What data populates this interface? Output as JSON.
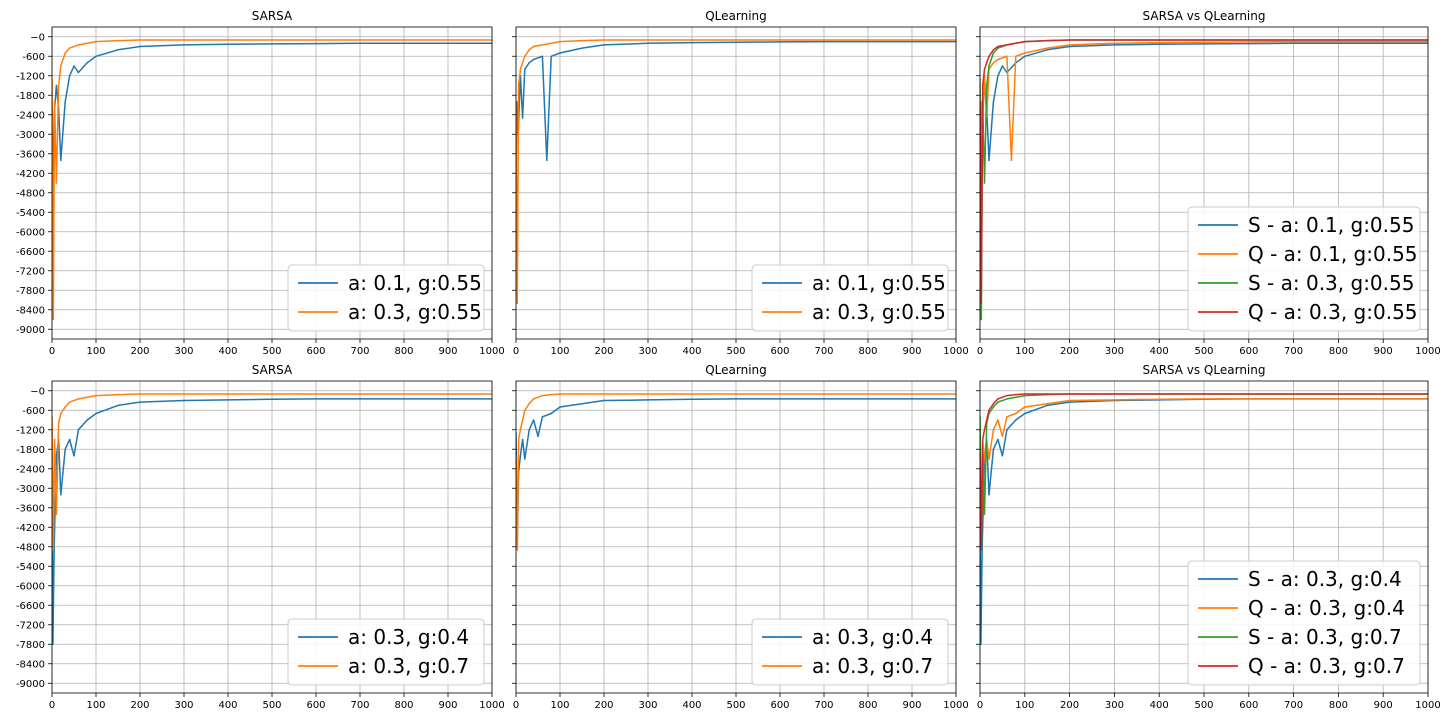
{
  "figure": {
    "colors": {
      "blue": "#1f77b4",
      "orange": "#ff7f0e",
      "green": "#2ca02c",
      "red": "#d62728",
      "grid": "#b0b0b0"
    },
    "x_ticks": [
      0,
      100,
      200,
      300,
      400,
      500,
      600,
      700,
      800,
      900,
      1000
    ],
    "y_ticks": [
      0,
      -600,
      -1200,
      -1800,
      -2400,
      -3000,
      -3600,
      -4200,
      -4800,
      -5400,
      -6000,
      -6600,
      -7200,
      -7800,
      -8400,
      -9000
    ],
    "y_tick_labels": [
      "−0",
      "-600",
      "-1200",
      "-1800",
      "-2400",
      "-3000",
      "-3600",
      "-4200",
      "-4800",
      "-5400",
      "-6000",
      "-6600",
      "-7200",
      "-7800",
      "-8400",
      "-9000"
    ]
  },
  "chart_data": [
    {
      "type": "line",
      "title": "SARSA",
      "xlim": [
        0,
        1000
      ],
      "ylim": [
        -9300,
        300
      ],
      "grid": true,
      "legend_position": "lower right",
      "series": [
        {
          "name": "a: 0.1, g:0.55",
          "color": "#1f77b4",
          "x": [
            0,
            5,
            10,
            15,
            20,
            30,
            40,
            50,
            60,
            80,
            100,
            150,
            200,
            300,
            400,
            500,
            600,
            700,
            800,
            900,
            1000
          ],
          "y": [
            -6600,
            -2400,
            -1500,
            -2200,
            -3800,
            -2000,
            -1200,
            -900,
            -1100,
            -800,
            -600,
            -400,
            -300,
            -250,
            -230,
            -220,
            -210,
            -200,
            -200,
            -200,
            -200
          ]
        },
        {
          "name": "a: 0.3, g:0.55",
          "color": "#ff7f0e",
          "x": [
            0,
            3,
            6,
            10,
            15,
            20,
            30,
            40,
            60,
            80,
            100,
            150,
            200,
            300,
            400,
            500,
            600,
            700,
            800,
            900,
            1000
          ],
          "y": [
            -1300,
            -8700,
            -2000,
            -4500,
            -1500,
            -900,
            -500,
            -350,
            -250,
            -200,
            -150,
            -120,
            -100,
            -100,
            -100,
            -100,
            -100,
            -100,
            -100,
            -100,
            -100
          ]
        }
      ]
    },
    {
      "type": "line",
      "title": "QLearning",
      "xlim": [
        0,
        1000
      ],
      "ylim": [
        -9300,
        300
      ],
      "grid": true,
      "legend_position": "lower right",
      "series": [
        {
          "name": "a: 0.1, g:0.55",
          "color": "#1f77b4",
          "x": [
            0,
            2,
            5,
            10,
            15,
            20,
            30,
            40,
            60,
            70,
            80,
            100,
            150,
            200,
            300,
            400,
            500,
            600,
            700,
            800,
            900,
            1000
          ],
          "y": [
            -4700,
            -2000,
            -3000,
            -1200,
            -2500,
            -1000,
            -800,
            -700,
            -600,
            -3800,
            -600,
            -500,
            -350,
            -250,
            -200,
            -180,
            -170,
            -160,
            -150,
            -150,
            -150,
            -150
          ]
        },
        {
          "name": "a: 0.3, g:0.55",
          "color": "#ff7f0e",
          "x": [
            0,
            3,
            6,
            10,
            15,
            20,
            30,
            40,
            60,
            80,
            100,
            150,
            200,
            300,
            400,
            500,
            600,
            700,
            800,
            900,
            1000
          ],
          "y": [
            -2000,
            -8200,
            -1500,
            -1000,
            -800,
            -600,
            -400,
            -300,
            -250,
            -200,
            -150,
            -120,
            -100,
            -100,
            -100,
            -100,
            -100,
            -100,
            -100,
            -100,
            -100
          ]
        }
      ]
    },
    {
      "type": "line",
      "title": "SARSA vs QLearning",
      "xlim": [
        0,
        1000
      ],
      "ylim": [
        -9300,
        300
      ],
      "grid": true,
      "legend_position": "lower right",
      "series": [
        {
          "name": "S - a: 0.1, g:0.55",
          "color": "#1f77b4",
          "x": [
            0,
            5,
            10,
            15,
            20,
            30,
            40,
            50,
            60,
            80,
            100,
            150,
            200,
            300,
            400,
            500,
            600,
            700,
            800,
            900,
            1000
          ],
          "y": [
            -6600,
            -2400,
            -1500,
            -2200,
            -3800,
            -2000,
            -1200,
            -900,
            -1100,
            -800,
            -600,
            -400,
            -300,
            -250,
            -230,
            -220,
            -210,
            -200,
            -200,
            -200,
            -200
          ]
        },
        {
          "name": "Q - a: 0.1, g:0.55",
          "color": "#ff7f0e",
          "x": [
            0,
            2,
            5,
            10,
            15,
            20,
            30,
            40,
            60,
            70,
            80,
            100,
            150,
            200,
            300,
            400,
            500,
            600,
            700,
            800,
            900,
            1000
          ],
          "y": [
            -4700,
            -2000,
            -3000,
            -1200,
            -2500,
            -1000,
            -800,
            -700,
            -600,
            -3800,
            -600,
            -500,
            -350,
            -250,
            -200,
            -180,
            -170,
            -160,
            -150,
            -150,
            -150,
            -150
          ]
        },
        {
          "name": "S - a: 0.3, g:0.55",
          "color": "#2ca02c",
          "x": [
            0,
            3,
            6,
            10,
            15,
            20,
            30,
            40,
            60,
            80,
            100,
            150,
            200,
            300,
            400,
            500,
            600,
            700,
            800,
            900,
            1000
          ],
          "y": [
            -1300,
            -8700,
            -2000,
            -4500,
            -1500,
            -900,
            -500,
            -350,
            -250,
            -200,
            -150,
            -120,
            -100,
            -100,
            -100,
            -100,
            -100,
            -100,
            -100,
            -100,
            -100
          ]
        },
        {
          "name": "Q - a: 0.3, g:0.55",
          "color": "#d62728",
          "x": [
            0,
            3,
            6,
            10,
            15,
            20,
            30,
            40,
            60,
            80,
            100,
            150,
            200,
            300,
            400,
            500,
            600,
            700,
            800,
            900,
            1000
          ],
          "y": [
            -2000,
            -8200,
            -1500,
            -1000,
            -800,
            -600,
            -400,
            -300,
            -250,
            -200,
            -150,
            -120,
            -100,
            -100,
            -100,
            -100,
            -100,
            -100,
            -100,
            -100,
            -100
          ]
        }
      ]
    },
    {
      "type": "line",
      "title": "SARSA",
      "xlim": [
        0,
        1000
      ],
      "ylim": [
        -9300,
        300
      ],
      "grid": true,
      "legend_position": "lower right",
      "series": [
        {
          "name": "a: 0.3, g:0.4",
          "color": "#1f77b4",
          "x": [
            0,
            2,
            5,
            10,
            15,
            20,
            30,
            40,
            50,
            60,
            80,
            100,
            150,
            200,
            300,
            400,
            500,
            600,
            700,
            800,
            900,
            1000
          ],
          "y": [
            -2800,
            -7800,
            -4800,
            -2000,
            -1500,
            -3200,
            -1800,
            -1500,
            -2000,
            -1200,
            -900,
            -700,
            -450,
            -350,
            -300,
            -280,
            -260,
            -250,
            -250,
            -250,
            -250,
            -250
          ]
        },
        {
          "name": "a: 0.3, g:0.7",
          "color": "#ff7f0e",
          "x": [
            0,
            3,
            6,
            10,
            15,
            20,
            30,
            40,
            60,
            80,
            100,
            150,
            200,
            300,
            400,
            500,
            600,
            700,
            800,
            900,
            1000
          ],
          "y": [
            -800,
            -4900,
            -1500,
            -3800,
            -1000,
            -700,
            -500,
            -350,
            -250,
            -200,
            -150,
            -120,
            -100,
            -100,
            -100,
            -100,
            -100,
            -100,
            -100,
            -100,
            -100
          ]
        }
      ]
    },
    {
      "type": "line",
      "title": "QLearning",
      "xlim": [
        0,
        1000
      ],
      "ylim": [
        -9300,
        300
      ],
      "grid": true,
      "legend_position": "lower right",
      "series": [
        {
          "name": "a: 0.3, g:0.4",
          "color": "#1f77b4",
          "x": [
            0,
            3,
            6,
            10,
            15,
            20,
            30,
            40,
            50,
            60,
            80,
            100,
            150,
            200,
            300,
            400,
            500,
            600,
            700,
            800,
            900,
            1000
          ],
          "y": [
            -1300,
            -4700,
            -2500,
            -2000,
            -1500,
            -2100,
            -1200,
            -900,
            -1400,
            -800,
            -700,
            -500,
            -400,
            -300,
            -280,
            -260,
            -250,
            -250,
            -250,
            -250,
            -250,
            -250
          ]
        },
        {
          "name": "a: 0.3, g:0.7",
          "color": "#ff7f0e",
          "x": [
            0,
            3,
            6,
            10,
            15,
            20,
            30,
            40,
            60,
            80,
            100,
            150,
            200,
            300,
            400,
            500,
            600,
            700,
            800,
            900,
            1000
          ],
          "y": [
            -2000,
            -4900,
            -1500,
            -1200,
            -900,
            -600,
            -400,
            -250,
            -150,
            -120,
            -100,
            -100,
            -100,
            -100,
            -100,
            -100,
            -100,
            -100,
            -100,
            -100,
            -100
          ]
        }
      ]
    },
    {
      "type": "line",
      "title": "SARSA vs QLearning",
      "xlim": [
        0,
        1000
      ],
      "ylim": [
        -9300,
        300
      ],
      "grid": true,
      "legend_position": "lower right",
      "series": [
        {
          "name": "S - a: 0.3, g:0.4",
          "color": "#1f77b4",
          "x": [
            0,
            2,
            5,
            10,
            15,
            20,
            30,
            40,
            50,
            60,
            80,
            100,
            150,
            200,
            300,
            400,
            500,
            600,
            700,
            800,
            900,
            1000
          ],
          "y": [
            -2800,
            -7800,
            -4800,
            -2000,
            -1500,
            -3200,
            -1800,
            -1500,
            -2000,
            -1200,
            -900,
            -700,
            -450,
            -350,
            -300,
            -280,
            -260,
            -250,
            -250,
            -250,
            -250,
            -250
          ]
        },
        {
          "name": "Q - a: 0.3, g:0.4",
          "color": "#ff7f0e",
          "x": [
            0,
            3,
            6,
            10,
            15,
            20,
            30,
            40,
            50,
            60,
            80,
            100,
            150,
            200,
            300,
            400,
            500,
            600,
            700,
            800,
            900,
            1000
          ],
          "y": [
            -1300,
            -4700,
            -2500,
            -2000,
            -1500,
            -2100,
            -1200,
            -900,
            -1400,
            -800,
            -700,
            -500,
            -400,
            -300,
            -280,
            -260,
            -250,
            -250,
            -250,
            -250,
            -250,
            -250
          ]
        },
        {
          "name": "S - a: 0.3, g:0.7",
          "color": "#2ca02c",
          "x": [
            0,
            3,
            6,
            10,
            15,
            20,
            30,
            40,
            60,
            80,
            100,
            150,
            200,
            300,
            400,
            500,
            600,
            700,
            800,
            900,
            1000
          ],
          "y": [
            -800,
            -4900,
            -1500,
            -3800,
            -1000,
            -700,
            -500,
            -350,
            -250,
            -200,
            -150,
            -120,
            -100,
            -100,
            -100,
            -100,
            -100,
            -100,
            -100,
            -100,
            -100
          ]
        },
        {
          "name": "Q - a: 0.3, g:0.7",
          "color": "#d62728",
          "x": [
            0,
            3,
            6,
            10,
            15,
            20,
            30,
            40,
            60,
            80,
            100,
            150,
            200,
            300,
            400,
            500,
            600,
            700,
            800,
            900,
            1000
          ],
          "y": [
            -2000,
            -4900,
            -1500,
            -1200,
            -900,
            -600,
            -400,
            -250,
            -150,
            -120,
            -100,
            -100,
            -100,
            -100,
            -100,
            -100,
            -100,
            -100,
            -100,
            -100,
            -100
          ]
        }
      ]
    }
  ]
}
